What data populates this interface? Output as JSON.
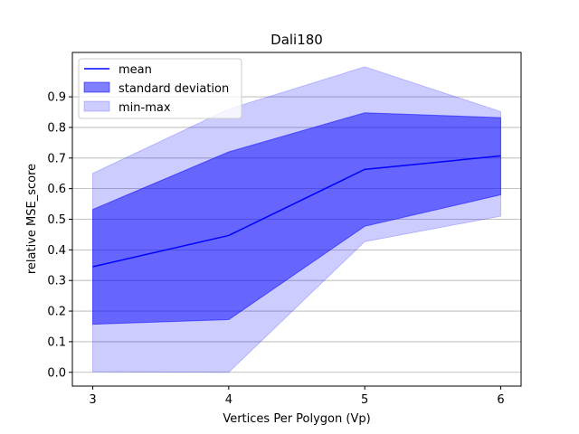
{
  "chart_data": {
    "type": "area",
    "title": "Dali180",
    "xlabel": "Vertices Per Polygon (Vp)",
    "ylabel": "relative MSE_score",
    "x": [
      3,
      4,
      5,
      6
    ],
    "xticks": [
      "3",
      "4",
      "5",
      "6"
    ],
    "yticks": [
      "0.0",
      "0.1",
      "0.2",
      "0.3",
      "0.4",
      "0.5",
      "0.6",
      "0.7",
      "0.8",
      "0.9"
    ],
    "xlim": [
      2.85,
      6.15
    ],
    "ylim": [
      -0.045,
      1.045
    ],
    "grid": "horizontal",
    "legend_position": "top-left",
    "series": [
      {
        "name": "mean",
        "kind": "line",
        "color": "#0000ff",
        "values": [
          0.345,
          0.447,
          0.663,
          0.707
        ]
      },
      {
        "name": "standard deviation",
        "kind": "band",
        "color": "#0000ff",
        "opacity": 0.5,
        "lower": [
          0.157,
          0.172,
          0.477,
          0.58
        ],
        "upper": [
          0.532,
          0.72,
          0.848,
          0.832
        ]
      },
      {
        "name": "min-max",
        "kind": "band",
        "color": "#0000ff",
        "opacity": 0.2,
        "lower": [
          0.002,
          0.0,
          0.427,
          0.51
        ],
        "upper": [
          0.65,
          0.86,
          0.998,
          0.852
        ]
      }
    ]
  }
}
